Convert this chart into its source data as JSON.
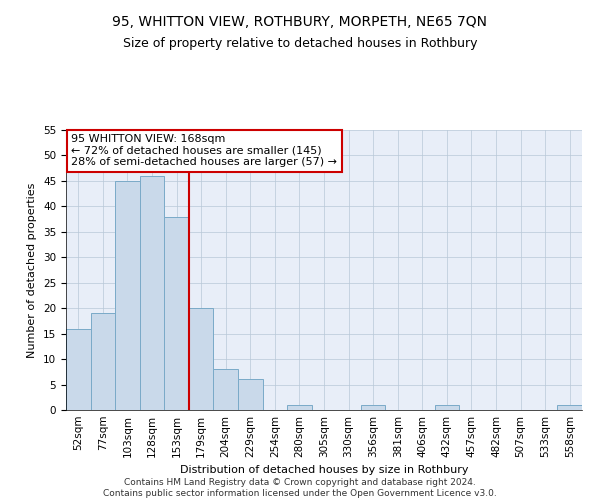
{
  "title1": "95, WHITTON VIEW, ROTHBURY, MORPETH, NE65 7QN",
  "title2": "Size of property relative to detached houses in Rothbury",
  "xlabel": "Distribution of detached houses by size in Rothbury",
  "ylabel": "Number of detached properties",
  "bar_labels": [
    "52sqm",
    "77sqm",
    "103sqm",
    "128sqm",
    "153sqm",
    "179sqm",
    "204sqm",
    "229sqm",
    "254sqm",
    "280sqm",
    "305sqm",
    "330sqm",
    "356sqm",
    "381sqm",
    "406sqm",
    "432sqm",
    "457sqm",
    "482sqm",
    "507sqm",
    "533sqm",
    "558sqm"
  ],
  "bar_values": [
    16,
    19,
    45,
    46,
    38,
    20,
    8,
    6,
    0,
    1,
    0,
    0,
    1,
    0,
    0,
    1,
    0,
    0,
    0,
    0,
    1
  ],
  "bar_color": "#c9d9ea",
  "bar_edge_color": "#7aaac8",
  "vline_color": "#cc0000",
  "annotation_line1": "95 WHITTON VIEW: 168sqm",
  "annotation_line2": "← 72% of detached houses are smaller (145)",
  "annotation_line3": "28% of semi-detached houses are larger (57) →",
  "annotation_box_color": "#ffffff",
  "annotation_box_edge": "#cc0000",
  "ylim": [
    0,
    55
  ],
  "yticks": [
    0,
    5,
    10,
    15,
    20,
    25,
    30,
    35,
    40,
    45,
    50,
    55
  ],
  "bg_color": "#e8eef8",
  "footer_line1": "Contains HM Land Registry data © Crown copyright and database right 2024.",
  "footer_line2": "Contains public sector information licensed under the Open Government Licence v3.0.",
  "title1_fontsize": 10,
  "title2_fontsize": 9,
  "axis_label_fontsize": 8,
  "tick_fontsize": 7.5,
  "annotation_fontsize": 8,
  "footer_fontsize": 6.5
}
